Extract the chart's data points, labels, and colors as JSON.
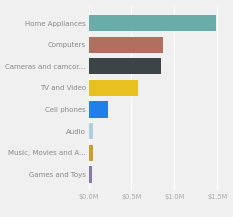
{
  "categories": [
    "Home Appliances",
    "Computers",
    "Cameras and camcor...",
    "TV and Video",
    "Cell phones",
    "Audio",
    "Music, Movies and A...",
    "Games and Toys"
  ],
  "values": [
    1480000,
    870000,
    840000,
    580000,
    230000,
    52000,
    48000,
    35000
  ],
  "bar_colors": [
    "#6aada8",
    "#b07060",
    "#3d4448",
    "#e8c020",
    "#2080e8",
    "#b0cfe0",
    "#c8a030",
    "#8878b0"
  ],
  "xlim": [
    0,
    1600000
  ],
  "xtick_labels": [
    "$0.0M",
    "$0.5M",
    "$1.0M",
    "$1.5M"
  ],
  "xtick_values": [
    0,
    500000,
    1000000,
    1500000
  ],
  "background_color": "#f0f0f0",
  "bar_height": 0.75,
  "label_fontsize": 5.0,
  "tick_fontsize": 4.8,
  "label_color": "#888888",
  "tick_color": "#aaaaaa",
  "grid_color": "#ffffff"
}
